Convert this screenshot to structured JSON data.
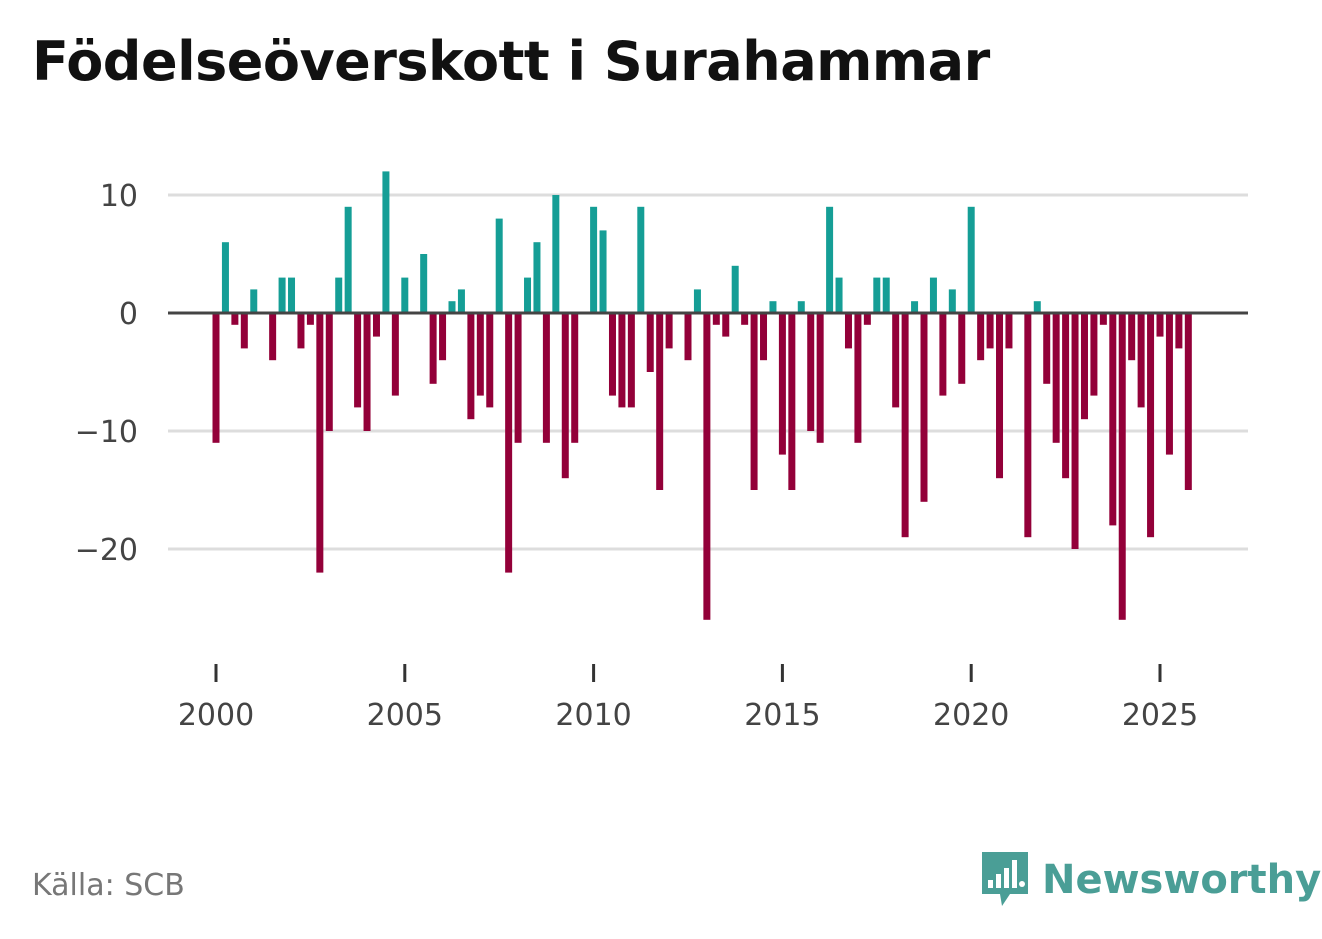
{
  "title": "Födelseöverskott i Surahammar",
  "source": "Källa: SCB",
  "brand": {
    "name": "Newsworthy",
    "icon": "bar-chart-bubble-icon",
    "color": "#4a9e96"
  },
  "chart_data": {
    "type": "bar",
    "title": "Födelseöverskott i Surahammar",
    "xlabel": "",
    "ylabel": "",
    "ylim": [
      -28,
      13
    ],
    "xlim": [
      1998.8,
      2027.2
    ],
    "x_ticks": [
      2000,
      2005,
      2010,
      2015,
      2020,
      2025
    ],
    "y_ticks": [
      10,
      0,
      -10,
      -20
    ],
    "y_tick_labels": [
      "10",
      "0",
      "−10",
      "−20"
    ],
    "grid": true,
    "positive_color": "#159e96",
    "negative_color": "#930039",
    "x": [
      2000.0,
      2000.25,
      2000.5,
      2000.75,
      2001.0,
      2001.25,
      2001.5,
      2001.75,
      2002.0,
      2002.25,
      2002.5,
      2002.75,
      2003.0,
      2003.25,
      2003.5,
      2003.75,
      2004.0,
      2004.25,
      2004.5,
      2004.75,
      2005.0,
      2005.25,
      2005.5,
      2005.75,
      2006.0,
      2006.25,
      2006.5,
      2006.75,
      2007.0,
      2007.25,
      2007.5,
      2007.75,
      2008.0,
      2008.25,
      2008.5,
      2008.75,
      2009.0,
      2009.25,
      2009.5,
      2009.75,
      2010.0,
      2010.25,
      2010.5,
      2010.75,
      2011.0,
      2011.25,
      2011.5,
      2011.75,
      2012.0,
      2012.25,
      2012.5,
      2012.75,
      2013.0,
      2013.25,
      2013.5,
      2013.75,
      2014.0,
      2014.25,
      2014.5,
      2014.75,
      2015.0,
      2015.25,
      2015.5,
      2015.75,
      2016.0,
      2016.25,
      2016.5,
      2016.75,
      2017.0,
      2017.25,
      2017.5,
      2017.75,
      2018.0,
      2018.25,
      2018.5,
      2018.75,
      2019.0,
      2019.25,
      2019.5,
      2019.75,
      2020.0,
      2020.25,
      2020.5,
      2020.75,
      2021.0,
      2021.25,
      2021.5,
      2021.75,
      2022.0,
      2022.25,
      2022.5,
      2022.75,
      2023.0,
      2023.25,
      2023.5,
      2023.75,
      2024.0,
      2024.25,
      2024.5,
      2024.75,
      2025.0,
      2025.25,
      2025.5,
      2025.75
    ],
    "values": [
      -11,
      6,
      -1,
      -3,
      2,
      0,
      -4,
      3,
      3,
      -3,
      -1,
      -22,
      -10,
      3,
      9,
      -8,
      -10,
      -2,
      12,
      -7,
      3,
      0,
      5,
      -6,
      -4,
      1,
      2,
      -9,
      -7,
      -8,
      8,
      -22,
      -11,
      3,
      6,
      -11,
      10,
      -14,
      -11,
      0,
      9,
      7,
      -7,
      -8,
      -8,
      9,
      -5,
      -15,
      -3,
      0,
      -4,
      2,
      -26,
      -1,
      -2,
      4,
      -1,
      -15,
      -4,
      1,
      -12,
      -15,
      1,
      -10,
      -11,
      9,
      3,
      -3,
      -11,
      -1,
      3,
      3,
      -8,
      -19,
      1,
      -16,
      3,
      -7,
      2,
      -6,
      9,
      -4,
      -3,
      -14,
      -3,
      0,
      -19,
      1,
      -6,
      -11,
      -14,
      -20,
      -9,
      -7,
      -1,
      -18,
      -26,
      -4,
      -8,
      -19,
      -2,
      -12,
      -3,
      -15
    ]
  }
}
